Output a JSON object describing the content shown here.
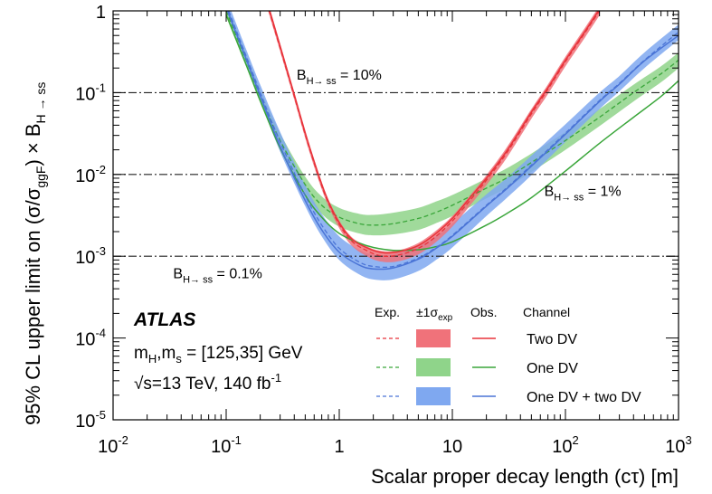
{
  "chart_data": {
    "type": "line",
    "title": "",
    "xlabel": "Scalar proper decay length (cτ) [m]",
    "ylabel": "95% CL upper limit on (σ/σ_ggF) × B_H → ss",
    "ylabel_parts": {
      "main": "95% CL upper limit on (σ/σ",
      "sub1": "ggF",
      "mid": ") × B",
      "sub2": "H → ss"
    },
    "x_scale": "log",
    "y_scale": "log",
    "xlim": [
      0.01,
      1000
    ],
    "ylim": [
      1e-05,
      1
    ],
    "x_ticks": [
      {
        "value": 0.01,
        "base": "10",
        "exp": "-2"
      },
      {
        "value": 0.1,
        "base": "10",
        "exp": "-1"
      },
      {
        "value": 1,
        "base": "1",
        "exp": ""
      },
      {
        "value": 10,
        "base": "10",
        "exp": ""
      },
      {
        "value": 100,
        "base": "10",
        "exp": "2"
      },
      {
        "value": 1000,
        "base": "10",
        "exp": "3"
      }
    ],
    "y_ticks": [
      {
        "value": 1e-05,
        "base": "10",
        "exp": "-5"
      },
      {
        "value": 0.0001,
        "base": "10",
        "exp": "-4"
      },
      {
        "value": 0.001,
        "base": "10",
        "exp": "-3"
      },
      {
        "value": 0.01,
        "base": "10",
        "exp": "-2"
      },
      {
        "value": 0.1,
        "base": "10",
        "exp": "-1"
      },
      {
        "value": 1,
        "base": "1",
        "exp": ""
      }
    ],
    "reference_lines": [
      {
        "label_main": "B",
        "label_sub": "H→ ss",
        "label_tail": " = 10%",
        "y": 0.1,
        "label_x": 0.42,
        "label_y": 0.145
      },
      {
        "label_main": "B",
        "label_sub": "H→ ss",
        "label_tail": " = 1%",
        "y": 0.01,
        "label_x": 65,
        "label_y": 0.0055
      },
      {
        "label_main": "B",
        "label_sub": "H→ ss",
        "label_tail": " = 0.1%",
        "y": 0.001,
        "label_x": 0.034,
        "label_y": 0.00054
      }
    ],
    "experiment": "ATLAS",
    "annotations": [
      {
        "main": "m",
        "sub": "H",
        "mid": ",m",
        "sub2": "s",
        "tail": " = [125,35] GeV"
      },
      {
        "main": "√s=13 TeV, 140 fb",
        "sup": "-1"
      }
    ],
    "legend": {
      "placement": "bottom-right",
      "headers": {
        "exp": "Exp.",
        "band_main": "±1σ",
        "band_sub": "exp",
        "obs": "Obs.",
        "channel": "Channel"
      }
    },
    "series": [
      {
        "name": "Two DV",
        "color": "#e8333a",
        "band_color": "#f0727a",
        "x": [
          0.22,
          0.3,
          0.4,
          0.55,
          0.8,
          1.2,
          1.8,
          2.5,
          3.5,
          5,
          7,
          10,
          15,
          20,
          30,
          50,
          70,
          100,
          150,
          200
        ],
        "expected": [
          1.5,
          0.35,
          0.09,
          0.02,
          0.0045,
          0.0017,
          0.00115,
          0.001,
          0.00105,
          0.00125,
          0.0017,
          0.0027,
          0.0052,
          0.0085,
          0.018,
          0.055,
          0.11,
          0.24,
          0.55,
          1.0
        ],
        "band_lo": [
          1.35,
          0.32,
          0.082,
          0.018,
          0.0041,
          0.0015,
          0.00098,
          0.00085,
          0.00088,
          0.00105,
          0.00145,
          0.0023,
          0.0045,
          0.0074,
          0.0157,
          0.048,
          0.096,
          0.21,
          0.48,
          0.88
        ],
        "band_hi": [
          1.7,
          0.4,
          0.1,
          0.022,
          0.005,
          0.0019,
          0.0013,
          0.00115,
          0.0012,
          0.00145,
          0.002,
          0.0031,
          0.006,
          0.0098,
          0.021,
          0.063,
          0.126,
          0.275,
          0.63,
          1.15
        ],
        "observed": [
          1.6,
          0.37,
          0.095,
          0.021,
          0.0047,
          0.0018,
          0.00125,
          0.0011,
          0.00115,
          0.00135,
          0.00185,
          0.0029,
          0.0056,
          0.009,
          0.019,
          0.058,
          0.115,
          0.25,
          0.57,
          1.05
        ]
      },
      {
        "name": "One DV",
        "color": "#3aa63a",
        "band_color": "#8fd48a",
        "x": [
          0.1,
          0.15,
          0.2,
          0.3,
          0.5,
          0.7,
          1,
          1.5,
          2,
          3,
          5,
          7,
          10,
          20,
          30,
          50,
          100,
          200,
          400,
          700,
          1000
        ],
        "expected": [
          1.0,
          0.25,
          0.09,
          0.026,
          0.0075,
          0.0042,
          0.003,
          0.0025,
          0.0024,
          0.0025,
          0.0029,
          0.0034,
          0.0042,
          0.0068,
          0.009,
          0.014,
          0.026,
          0.05,
          0.1,
          0.17,
          0.25
        ],
        "band_lo": [
          0.85,
          0.21,
          0.075,
          0.021,
          0.006,
          0.0033,
          0.0023,
          0.0019,
          0.0018,
          0.00185,
          0.0021,
          0.0025,
          0.0031,
          0.0051,
          0.0068,
          0.0107,
          0.02,
          0.039,
          0.078,
          0.134,
          0.2
        ],
        "band_hi": [
          1.2,
          0.3,
          0.11,
          0.032,
          0.0094,
          0.0054,
          0.0039,
          0.0033,
          0.0032,
          0.0034,
          0.0039,
          0.0046,
          0.0056,
          0.0089,
          0.0118,
          0.018,
          0.033,
          0.063,
          0.125,
          0.21,
          0.31
        ],
        "observed": [
          0.9,
          0.22,
          0.08,
          0.021,
          0.0056,
          0.003,
          0.0019,
          0.00145,
          0.00128,
          0.00118,
          0.0012,
          0.0013,
          0.0015,
          0.0024,
          0.0033,
          0.0052,
          0.011,
          0.024,
          0.05,
          0.09,
          0.14
        ]
      },
      {
        "name": "One DV + two DV",
        "color": "#4a74d6",
        "band_color": "#7fa8f0",
        "x": [
          0.1,
          0.15,
          0.2,
          0.3,
          0.5,
          0.7,
          1,
          1.5,
          2,
          3,
          5,
          7,
          10,
          20,
          30,
          50,
          100,
          200,
          300,
          500,
          1000
        ],
        "expected": [
          1.2,
          0.28,
          0.1,
          0.025,
          0.0055,
          0.0024,
          0.00125,
          0.00085,
          0.00075,
          0.00075,
          0.00095,
          0.00125,
          0.0018,
          0.0042,
          0.0068,
          0.013,
          0.032,
          0.08,
          0.13,
          0.25,
          0.55
        ],
        "band_lo": [
          1.0,
          0.23,
          0.08,
          0.019,
          0.0041,
          0.00175,
          0.0009,
          0.0006,
          0.00052,
          0.00052,
          0.00066,
          0.00088,
          0.00128,
          0.0031,
          0.0051,
          0.0098,
          0.025,
          0.063,
          0.104,
          0.2,
          0.44
        ],
        "band_hi": [
          1.45,
          0.34,
          0.125,
          0.033,
          0.0074,
          0.0033,
          0.00175,
          0.0012,
          0.00105,
          0.00105,
          0.00132,
          0.00172,
          0.0025,
          0.0057,
          0.009,
          0.017,
          0.041,
          0.1,
          0.16,
          0.31,
          0.68
        ],
        "observed": [
          1.1,
          0.26,
          0.092,
          0.022,
          0.0048,
          0.0021,
          0.00112,
          0.00078,
          0.0007,
          0.00072,
          0.00092,
          0.00122,
          0.00175,
          0.0041,
          0.0066,
          0.0126,
          0.031,
          0.078,
          0.127,
          0.245,
          0.5
        ]
      }
    ]
  }
}
